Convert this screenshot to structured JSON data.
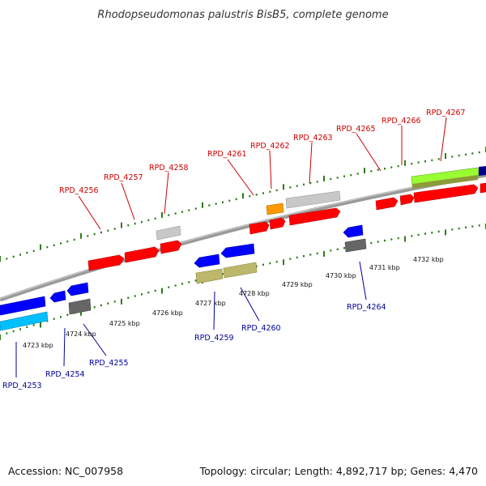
{
  "title": "Rhodopseudomonas palustris BisB5, complete genome",
  "footer": {
    "accession": "Accession: NC_007958",
    "summary": "Topology: circular; Length: 4,892,717 bp; Genes: 4,470"
  },
  "colors": {
    "forward_cds": "#ff0000",
    "reverse_cds": "#0000ff",
    "forward_label": "#cc0000",
    "reverse_label": "#00009b",
    "orange_gene": "#ff9900",
    "light_gray_gene": "#c8c8c8",
    "dark_gray_gene": "#666666",
    "olive_gene": "#bdb76b",
    "cyan_gene": "#00bfff",
    "green_gene": "#99ff33",
    "backbone": "#8a8a8a",
    "tick": "#2e7d1a"
  },
  "scale_labels": [
    "4723 kbp",
    "4724 kbp",
    "4725 kbp",
    "4726 kbp",
    "4727 kbp",
    "4728 kbp",
    "4729 kbp",
    "4730 kbp",
    "4731 kbp",
    "4732 kbp"
  ],
  "forward_genes": [
    {
      "label": "RPD_4256",
      "color": "#ff0000"
    },
    {
      "label": "RPD_4257",
      "color": "#ff0000"
    },
    {
      "label": "RPD_4258",
      "color": "#ff0000"
    },
    {
      "label": "RPD_4261",
      "color": "#ff0000"
    },
    {
      "label": "RPD_4262",
      "color": "#ff0000"
    },
    {
      "label": "RPD_4263",
      "color": "#ff0000"
    },
    {
      "label": "RPD_4265",
      "color": "#ff0000"
    },
    {
      "label": "RPD_4266",
      "color": "#ff0000"
    },
    {
      "label": "RPD_4267",
      "color": "#ff0000"
    }
  ],
  "reverse_genes": [
    {
      "label": "RPD_4253",
      "color": "#0000ff"
    },
    {
      "label": "RPD_4254",
      "color": "#0000ff"
    },
    {
      "label": "RPD_4255",
      "color": "#0000ff"
    },
    {
      "label": "RPD_4259",
      "color": "#0000ff"
    },
    {
      "label": "RPD_4260",
      "color": "#0000ff"
    },
    {
      "label": "RPD_4264",
      "color": "#0000ff"
    }
  ]
}
